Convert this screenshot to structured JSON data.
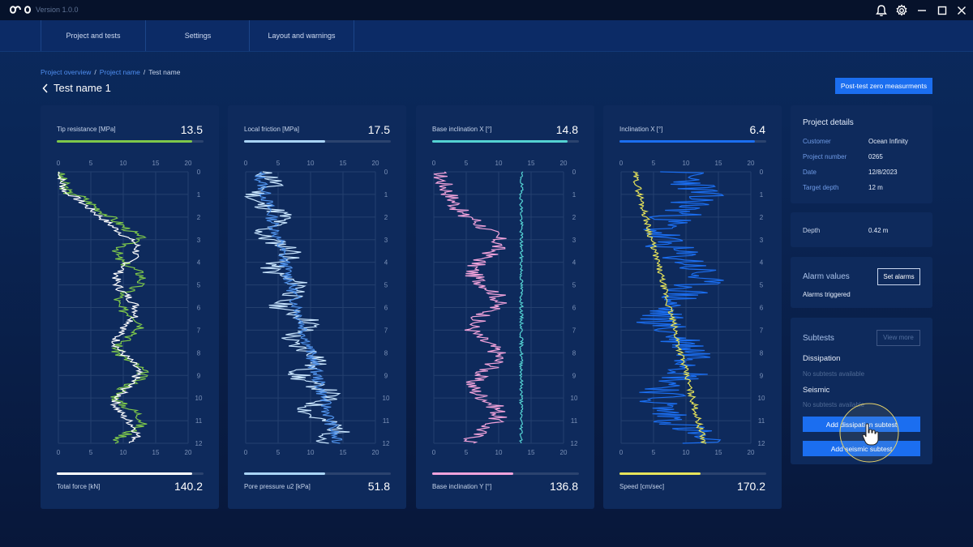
{
  "app": {
    "version": "Version 1.0.0",
    "icons": [
      "infinity-logo",
      "bell-icon",
      "gear-icon",
      "minimize-icon",
      "maximize-icon",
      "close-icon"
    ]
  },
  "nav": {
    "items": [
      "Project and tests",
      "Settings",
      "Layout and warnings"
    ]
  },
  "breadcrumb": {
    "items": [
      "Project overview",
      "Project name",
      "Test name"
    ]
  },
  "page": {
    "title": "Test name 1",
    "post_test_button": "Post-test zero measurments"
  },
  "depth_ticks": [
    "0",
    "1",
    "2",
    "3",
    "4",
    "5",
    "6",
    "7",
    "8",
    "9",
    "10",
    "11",
    "12"
  ],
  "x_ticks": [
    "0",
    "5",
    "10",
    "15",
    "20"
  ],
  "cards": [
    {
      "top_label": "Tip resistance [MPa]",
      "top_value": "13.5",
      "top_progress": 0.92,
      "top_color": "#7ec84a",
      "bottom_label": "Total force [kN]",
      "bottom_value": "140.2",
      "bottom_progress": 0.92,
      "bottom_color": "#ffffff"
    },
    {
      "top_label": "Local friction [MPa]",
      "top_value": "17.5",
      "top_progress": 0.55,
      "top_color": "#a9d4f6",
      "bottom_label": "Pore pressure u2 [kPa]",
      "bottom_value": "51.8",
      "bottom_progress": 0.55,
      "bottom_color": "#a9d4f6"
    },
    {
      "top_label": "Base inclination X [°]",
      "top_value": "14.8",
      "top_progress": 0.92,
      "top_color": "#54d2d2",
      "bottom_label": "Base inclination Y [°]",
      "bottom_value": "136.8",
      "bottom_progress": 0.55,
      "bottom_color": "#f2a3db"
    },
    {
      "top_label": "Inclination  X [°]",
      "top_value": "6.4",
      "top_progress": 0.92,
      "top_color": "#1b6ef0",
      "bottom_label": "Speed [cm/sec]",
      "bottom_value": "170.2",
      "bottom_progress": 0.55,
      "bottom_color": "#e6e35a"
    }
  ],
  "project_details": {
    "title": "Project details",
    "rows": [
      {
        "key": "Customer",
        "value": "Ocean Infinity"
      },
      {
        "key": "Project number",
        "value": "0265"
      },
      {
        "key": "Date",
        "value": "12/8/2023"
      },
      {
        "key": "Target depth",
        "value": "12 m"
      }
    ]
  },
  "depth": {
    "key": "Depth",
    "value": "0.42 m"
  },
  "alarms": {
    "title": "Alarm values",
    "set_button": "Set alarms",
    "status": "Alarms triggered"
  },
  "subtests": {
    "title": "Subtests",
    "view_more": "View more",
    "dissipation": {
      "title": "Dissipation",
      "empty": "No subtests available"
    },
    "seismic": {
      "title": "Seismic",
      "empty": "No subtests available"
    },
    "add_dissipation": "Add dissipation subtest",
    "add_seismic": "Add seismic subtest"
  }
}
